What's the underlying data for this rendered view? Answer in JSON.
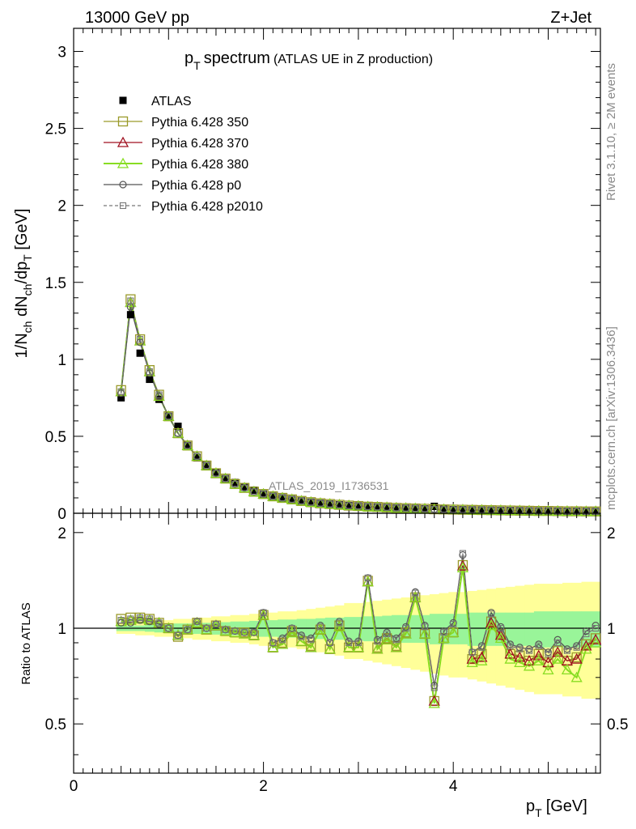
{
  "header": {
    "left": "13000 GeV pp",
    "right": "Z+Jet"
  },
  "side_labels": {
    "top": "Rivet 3.1.10, ≥ 2M events",
    "bottom": "mcplots.cern.ch [arXiv:1306.3436]"
  },
  "watermark": "ATLAS_2019_I1736531",
  "colors": {
    "atlas": "#000000",
    "p350": "#9a9a2a",
    "p370": "#a01020",
    "p380": "#88dd22",
    "p0": "#555555",
    "p2010": "#777777",
    "band_inner": "#99f599",
    "band_outer": "#ffff99"
  },
  "chart_data": [
    {
      "type": "scatter",
      "title_main": "p",
      "title_sub": "T",
      "title_rest": "spectrum",
      "title_paren": "(ATLAS UE in Z production)",
      "xlabel": "p_T [GeV]",
      "ylabel": "1/N_ch dN_ch/dp_T [GeV]",
      "xlim": [
        0,
        5.55
      ],
      "ylim": [
        0,
        3.15
      ],
      "y_ticks": [
        "0",
        "0.5",
        "1",
        "1.5",
        "2",
        "2.5",
        "3"
      ],
      "legend_position": "top-left",
      "x": [
        0.5,
        0.6,
        0.7,
        0.8,
        0.9,
        1.0,
        1.1,
        1.2,
        1.3,
        1.4,
        1.5,
        1.6,
        1.7,
        1.8,
        1.9,
        2.0,
        2.1,
        2.2,
        2.3,
        2.4,
        2.5,
        2.6,
        2.7,
        2.8,
        2.9,
        3.0,
        3.1,
        3.2,
        3.3,
        3.4,
        3.5,
        3.6,
        3.7,
        3.8,
        3.9,
        4.0,
        4.1,
        4.2,
        4.3,
        4.4,
        4.5,
        4.6,
        4.7,
        4.8,
        4.9,
        5.0,
        5.1,
        5.2,
        5.3,
        5.4,
        5.5
      ],
      "series": [
        {
          "name": "ATLAS",
          "key": "atlas",
          "values": [
            0.75,
            1.29,
            1.04,
            0.87,
            0.74,
            0.63,
            0.565,
            0.44,
            0.36,
            0.31,
            0.265,
            0.225,
            0.2,
            0.17,
            0.15,
            0.125,
            0.11,
            0.1,
            0.09,
            0.08,
            0.072,
            0.065,
            0.06,
            0.055,
            0.05,
            0.047,
            0.043,
            0.041,
            0.038,
            0.035,
            0.033,
            0.031,
            0.029,
            0.045,
            0.026,
            0.024,
            0.023,
            0.022,
            0.021,
            0.02,
            0.019,
            0.018,
            0.017,
            0.016,
            0.015,
            0.015,
            0.014,
            0.013,
            0.013,
            0.012,
            0.012
          ]
        },
        {
          "name": "Pythia 6.428 350",
          "key": "p350",
          "values": [
            0.8,
            1.39,
            1.13,
            0.93,
            0.77,
            0.63,
            0.52,
            0.44,
            0.37,
            0.31,
            0.26,
            0.225,
            0.19,
            0.165,
            0.14,
            0.125,
            0.11,
            0.1,
            0.09,
            0.08,
            0.072,
            0.065,
            0.06,
            0.055,
            0.05,
            0.047,
            0.043,
            0.041,
            0.038,
            0.035,
            0.033,
            0.031,
            0.029,
            0.026,
            0.025,
            0.024,
            0.023,
            0.022,
            0.021,
            0.02,
            0.019,
            0.018,
            0.017,
            0.016,
            0.015,
            0.015,
            0.014,
            0.013,
            0.013,
            0.012,
            0.012
          ]
        },
        {
          "name": "Pythia 6.428 370",
          "key": "p370",
          "values": [
            0.79,
            1.37,
            1.12,
            0.92,
            0.76,
            0.63,
            0.52,
            0.44,
            0.37,
            0.31,
            0.26,
            0.225,
            0.19,
            0.165,
            0.14,
            0.125,
            0.11,
            0.1,
            0.09,
            0.08,
            0.072,
            0.065,
            0.06,
            0.055,
            0.05,
            0.047,
            0.043,
            0.041,
            0.038,
            0.035,
            0.033,
            0.031,
            0.029,
            0.026,
            0.025,
            0.024,
            0.023,
            0.022,
            0.021,
            0.02,
            0.019,
            0.018,
            0.017,
            0.016,
            0.015,
            0.015,
            0.014,
            0.013,
            0.013,
            0.012,
            0.012
          ]
        },
        {
          "name": "Pythia 6.428 380",
          "key": "p380",
          "values": [
            0.79,
            1.37,
            1.12,
            0.92,
            0.76,
            0.63,
            0.52,
            0.44,
            0.37,
            0.31,
            0.26,
            0.225,
            0.19,
            0.165,
            0.14,
            0.125,
            0.11,
            0.1,
            0.09,
            0.08,
            0.072,
            0.065,
            0.06,
            0.055,
            0.05,
            0.047,
            0.043,
            0.041,
            0.038,
            0.035,
            0.033,
            0.031,
            0.029,
            0.026,
            0.025,
            0.024,
            0.023,
            0.022,
            0.021,
            0.02,
            0.019,
            0.018,
            0.017,
            0.016,
            0.015,
            0.015,
            0.014,
            0.013,
            0.013,
            0.012,
            0.012
          ]
        },
        {
          "name": "Pythia 6.428 p0",
          "key": "p0",
          "values": [
            0.78,
            1.34,
            1.11,
            0.91,
            0.76,
            0.63,
            0.52,
            0.44,
            0.37,
            0.31,
            0.26,
            0.225,
            0.19,
            0.165,
            0.14,
            0.125,
            0.11,
            0.1,
            0.09,
            0.08,
            0.072,
            0.065,
            0.06,
            0.055,
            0.05,
            0.047,
            0.043,
            0.041,
            0.038,
            0.035,
            0.033,
            0.031,
            0.029,
            0.026,
            0.025,
            0.024,
            0.023,
            0.022,
            0.021,
            0.02,
            0.019,
            0.018,
            0.017,
            0.016,
            0.015,
            0.015,
            0.014,
            0.013,
            0.013,
            0.012,
            0.012
          ]
        },
        {
          "name": "Pythia 6.428 p2010",
          "key": "p2010",
          "dashed": true,
          "values": [
            0.79,
            1.38,
            1.13,
            0.92,
            0.77,
            0.63,
            0.52,
            0.44,
            0.37,
            0.31,
            0.26,
            0.225,
            0.19,
            0.165,
            0.14,
            0.125,
            0.11,
            0.1,
            0.09,
            0.08,
            0.072,
            0.065,
            0.06,
            0.055,
            0.05,
            0.047,
            0.043,
            0.041,
            0.038,
            0.035,
            0.033,
            0.031,
            0.029,
            0.026,
            0.025,
            0.024,
            0.023,
            0.022,
            0.021,
            0.02,
            0.019,
            0.018,
            0.017,
            0.016,
            0.015,
            0.015,
            0.014,
            0.013,
            0.013,
            0.012,
            0.012
          ]
        }
      ]
    },
    {
      "type": "line",
      "ylabel": "Ratio to ATLAS",
      "xlabel": "p_T [GeV]",
      "xlim": [
        0,
        5.55
      ],
      "ylim": [
        0.35,
        2.3
      ],
      "y_ticks": [
        "0.5",
        "1",
        "2"
      ],
      "x_ticks": [
        "0",
        "2",
        "4"
      ],
      "x": [
        0.5,
        0.6,
        0.7,
        0.8,
        0.9,
        1.0,
        1.1,
        1.2,
        1.3,
        1.4,
        1.5,
        1.6,
        1.7,
        1.8,
        1.9,
        2.0,
        2.1,
        2.2,
        2.3,
        2.4,
        2.5,
        2.6,
        2.7,
        2.8,
        2.9,
        3.0,
        3.1,
        3.2,
        3.3,
        3.4,
        3.5,
        3.6,
        3.7,
        3.8,
        3.9,
        4.0,
        4.1,
        4.2,
        4.3,
        4.4,
        4.5,
        4.6,
        4.7,
        4.8,
        4.9,
        5.0,
        5.1,
        5.2,
        5.3,
        5.4,
        5.5
      ],
      "band_inner": [
        0.02,
        0.02,
        0.02,
        0.025,
        0.03,
        0.03,
        0.035,
        0.035,
        0.04,
        0.04,
        0.045,
        0.045,
        0.05,
        0.05,
        0.055,
        0.06,
        0.06,
        0.065,
        0.065,
        0.07,
        0.07,
        0.075,
        0.08,
        0.08,
        0.085,
        0.085,
        0.09,
        0.09,
        0.095,
        0.1,
        0.1,
        0.1,
        0.1,
        0.11,
        0.11,
        0.11,
        0.11,
        0.12,
        0.12,
        0.12,
        0.12,
        0.12,
        0.12,
        0.12,
        0.13,
        0.13,
        0.13,
        0.13,
        0.13,
        0.13,
        0.13
      ],
      "band_outer": [
        0.04,
        0.04,
        0.05,
        0.05,
        0.06,
        0.06,
        0.07,
        0.07,
        0.08,
        0.08,
        0.09,
        0.09,
        0.1,
        0.1,
        0.11,
        0.12,
        0.12,
        0.13,
        0.13,
        0.14,
        0.15,
        0.16,
        0.17,
        0.18,
        0.2,
        0.2,
        0.21,
        0.22,
        0.23,
        0.24,
        0.25,
        0.26,
        0.27,
        0.28,
        0.29,
        0.3,
        0.3,
        0.31,
        0.32,
        0.33,
        0.34,
        0.35,
        0.36,
        0.37,
        0.38,
        0.38,
        0.38,
        0.39,
        0.39,
        0.4,
        0.4
      ],
      "series": [
        {
          "key": "p350",
          "values": [
            1.07,
            1.08,
            1.08,
            1.07,
            1.04,
            1.0,
            0.94,
            0.99,
            1.04,
            0.99,
            1.02,
            0.98,
            0.97,
            0.97,
            0.95,
            1.1,
            0.87,
            0.9,
            0.98,
            0.91,
            0.88,
            0.99,
            0.86,
            1.02,
            0.87,
            0.87,
            1.41,
            0.87,
            0.93,
            0.88,
            0.97,
            1.25,
            0.96,
            0.59,
            0.93,
            0.97,
            1.58,
            0.8,
            0.83,
            1.05,
            0.96,
            0.83,
            0.82,
            0.79,
            0.83,
            0.78,
            0.85,
            0.79,
            0.81,
            0.89,
            0.93
          ]
        },
        {
          "key": "p370",
          "values": [
            1.05,
            1.06,
            1.07,
            1.06,
            1.04,
            1.0,
            0.95,
            0.99,
            1.04,
            0.99,
            1.02,
            0.98,
            0.97,
            0.96,
            0.95,
            1.1,
            0.87,
            0.89,
            0.97,
            0.91,
            0.87,
            0.99,
            0.86,
            1.01,
            0.87,
            0.87,
            1.4,
            0.86,
            0.92,
            0.87,
            0.96,
            1.25,
            0.96,
            0.59,
            0.93,
            0.97,
            1.57,
            0.8,
            0.81,
            1.04,
            0.95,
            0.83,
            0.81,
            0.79,
            0.82,
            0.78,
            0.84,
            0.79,
            0.8,
            0.88,
            0.92
          ]
        },
        {
          "key": "p380",
          "values": [
            1.05,
            1.06,
            1.07,
            1.06,
            1.04,
            1.0,
            0.95,
            0.99,
            1.04,
            0.99,
            1.02,
            0.98,
            0.97,
            0.96,
            0.95,
            1.1,
            0.87,
            0.89,
            0.97,
            0.91,
            0.87,
            0.99,
            0.86,
            1.01,
            0.87,
            0.87,
            1.4,
            0.86,
            0.92,
            0.87,
            0.96,
            1.25,
            0.96,
            0.58,
            0.93,
            0.97,
            1.55,
            0.78,
            0.79,
            1.02,
            0.93,
            0.8,
            0.78,
            0.76,
            0.79,
            0.74,
            0.8,
            0.74,
            0.7,
            0.86,
            0.9
          ]
        },
        {
          "key": "p0",
          "values": [
            1.04,
            1.04,
            1.06,
            1.05,
            1.03,
            1.0,
            0.95,
            0.99,
            1.05,
            1.0,
            1.03,
            0.99,
            0.98,
            0.97,
            0.97,
            1.12,
            0.9,
            0.93,
            1.0,
            0.95,
            0.93,
            1.02,
            0.9,
            1.05,
            0.91,
            0.91,
            1.44,
            0.92,
            0.97,
            0.93,
            1.01,
            1.3,
            1.02,
            0.66,
            0.98,
            1.04,
            1.7,
            0.84,
            0.88,
            1.12,
            1.01,
            0.89,
            0.87,
            0.86,
            0.89,
            0.84,
            0.92,
            0.86,
            0.88,
            0.98,
            1.02
          ]
        },
        {
          "key": "p2010",
          "dashed": true,
          "values": [
            1.06,
            1.07,
            1.08,
            1.07,
            1.04,
            1.0,
            0.95,
            0.99,
            1.05,
            1.0,
            1.03,
            0.99,
            0.98,
            0.97,
            0.97,
            1.12,
            0.9,
            0.92,
            1.0,
            0.94,
            0.92,
            1.01,
            0.9,
            1.04,
            0.9,
            0.9,
            1.44,
            0.91,
            0.96,
            0.92,
            1.0,
            1.29,
            1.01,
            0.65,
            0.97,
            1.03,
            1.72,
            0.84,
            0.87,
            1.11,
            1.0,
            0.88,
            0.86,
            0.85,
            0.88,
            0.83,
            0.9,
            0.85,
            0.87,
            0.96,
            1.0
          ]
        }
      ]
    }
  ]
}
